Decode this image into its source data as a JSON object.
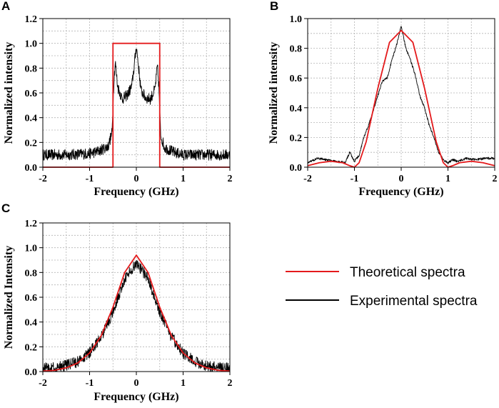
{
  "figure": {
    "legend": {
      "theoretical": {
        "label": "Theoretical spectra",
        "color": "#e41a1c"
      },
      "experimental": {
        "label": "Experimental spectra",
        "color": "#000000"
      }
    }
  },
  "chart_data": [
    {
      "panel": "A",
      "type": "line",
      "xlabel": "Frequency (GHz)",
      "ylabel": "Normalized intensity",
      "xlim": [
        -2,
        2
      ],
      "ylim": [
        0,
        1.2
      ],
      "xticks": [
        -2,
        -1,
        0,
        1,
        2
      ],
      "yticks": [
        0.0,
        0.2,
        0.4,
        0.6,
        0.8,
        1.0,
        1.2
      ],
      "ytick_labels": [
        "0.0",
        "0.2",
        "0.4",
        "0.6",
        "0.8",
        "1.0",
        "1.2"
      ],
      "grid": true,
      "series": [
        {
          "name": "Theoretical spectra",
          "color": "#e41a1c",
          "x": [
            -2,
            -0.5,
            -0.5,
            0.5,
            0.5,
            2
          ],
          "y": [
            0,
            0,
            1.0,
            1.0,
            0,
            0
          ]
        },
        {
          "name": "Experimental spectra",
          "color": "#000000",
          "x": [
            -2,
            -1.5,
            -1.0,
            -0.8,
            -0.6,
            -0.52,
            -0.48,
            -0.45,
            -0.4,
            -0.3,
            -0.2,
            -0.1,
            -0.05,
            0,
            0.05,
            0.1,
            0.2,
            0.3,
            0.4,
            0.45,
            0.48,
            0.52,
            0.6,
            0.8,
            1.0,
            1.5,
            2
          ],
          "y": [
            0.1,
            0.1,
            0.11,
            0.13,
            0.17,
            0.28,
            0.7,
            0.85,
            0.65,
            0.55,
            0.58,
            0.65,
            0.8,
            0.98,
            0.8,
            0.62,
            0.56,
            0.55,
            0.63,
            0.82,
            0.66,
            0.26,
            0.16,
            0.12,
            0.1,
            0.1,
            0.1
          ]
        }
      ]
    },
    {
      "panel": "B",
      "type": "line",
      "xlabel": "Frequency (GHz)",
      "ylabel": "Normalized intensity",
      "xlim": [
        -2,
        2
      ],
      "ylim": [
        0,
        1.0
      ],
      "xticks": [
        -2,
        -1,
        0,
        1,
        2
      ],
      "yticks": [
        0.0,
        0.2,
        0.4,
        0.6,
        0.8,
        1.0
      ],
      "ytick_labels": [
        "0.0",
        "0.2",
        "0.4",
        "0.6",
        "0.8",
        "1.0"
      ],
      "grid": true,
      "series": [
        {
          "name": "Theoretical spectra",
          "color": "#e41a1c",
          "x": [
            -2,
            -1.75,
            -1.5,
            -1.25,
            -1.1,
            -1.0,
            -0.9,
            -0.75,
            -0.5,
            -0.25,
            0,
            0.25,
            0.5,
            0.75,
            0.9,
            1.0,
            1.1,
            1.25,
            1.5,
            1.75,
            2
          ],
          "y": [
            0.01,
            0.03,
            0.04,
            0.03,
            0.01,
            0.0,
            0.03,
            0.17,
            0.53,
            0.84,
            0.92,
            0.84,
            0.53,
            0.17,
            0.03,
            0.0,
            0.01,
            0.03,
            0.04,
            0.03,
            0.01
          ]
        },
        {
          "name": "Experimental spectra",
          "color": "#000000",
          "x": [
            -2,
            -1.8,
            -1.6,
            -1.4,
            -1.2,
            -1.1,
            -1.0,
            -0.9,
            -0.8,
            -0.7,
            -0.6,
            -0.5,
            -0.4,
            -0.3,
            -0.2,
            -0.1,
            0,
            0.1,
            0.2,
            0.3,
            0.4,
            0.5,
            0.6,
            0.7,
            0.8,
            0.9,
            1.0,
            1.1,
            1.2,
            1.4,
            1.6,
            1.8,
            2
          ],
          "y": [
            0.03,
            0.06,
            0.05,
            0.04,
            0.03,
            0.1,
            0.04,
            0.08,
            0.2,
            0.28,
            0.38,
            0.48,
            0.58,
            0.6,
            0.72,
            0.82,
            0.95,
            0.8,
            0.72,
            0.62,
            0.48,
            0.4,
            0.28,
            0.2,
            0.1,
            0.05,
            0.03,
            0.05,
            0.04,
            0.06,
            0.05,
            0.06,
            0.06
          ]
        }
      ]
    },
    {
      "panel": "C",
      "type": "line",
      "xlabel": "Frequency (GHz)",
      "ylabel": "Normalized Intensity",
      "xlim": [
        -2,
        2
      ],
      "ylim": [
        0,
        1.2
      ],
      "xticks": [
        -2,
        -1,
        0,
        1,
        2
      ],
      "yticks": [
        0.0,
        0.2,
        0.4,
        0.6,
        0.8,
        1.0,
        1.2
      ],
      "ytick_labels": [
        "0.0",
        "0.2",
        "0.4",
        "0.6",
        "0.8",
        "1.0",
        "1.2"
      ],
      "grid": true,
      "series": [
        {
          "name": "Theoretical spectra",
          "color": "#e41a1c",
          "x": [
            -2,
            -1.75,
            -1.5,
            -1.25,
            -1.0,
            -0.75,
            -0.5,
            -0.25,
            0,
            0.25,
            0.5,
            0.75,
            1.0,
            1.25,
            1.5,
            1.75,
            2
          ],
          "y": [
            0.004,
            0.01,
            0.03,
            0.07,
            0.15,
            0.29,
            0.52,
            0.8,
            0.94,
            0.8,
            0.52,
            0.29,
            0.15,
            0.07,
            0.03,
            0.01,
            0.004
          ]
        },
        {
          "name": "Experimental spectra",
          "color": "#000000",
          "x": [
            -2,
            -1.75,
            -1.5,
            -1.25,
            -1.0,
            -0.75,
            -0.5,
            -0.25,
            0,
            0.25,
            0.5,
            0.75,
            1.0,
            1.25,
            1.5,
            1.75,
            2
          ],
          "y": [
            0.03,
            0.03,
            0.05,
            0.08,
            0.15,
            0.28,
            0.48,
            0.75,
            0.88,
            0.75,
            0.48,
            0.28,
            0.15,
            0.08,
            0.05,
            0.03,
            0.03
          ]
        }
      ]
    }
  ]
}
